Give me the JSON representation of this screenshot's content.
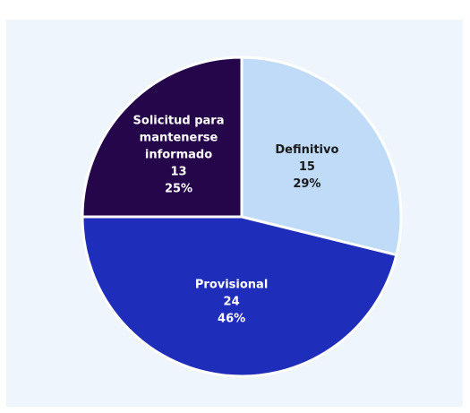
{
  "chart_data": {
    "type": "pie",
    "slices": [
      {
        "label": "Definitivo",
        "value": 15,
        "percent": "29%",
        "color": "#bfdbf8",
        "text_color": "#1a1a1a"
      },
      {
        "label": "Provisional",
        "value": 24,
        "percent": "46%",
        "color": "#1f2dbb",
        "text_color": "#ffffff"
      },
      {
        "label": "Solicitud para mantenerse informado",
        "value": 13,
        "percent": "25%",
        "color": "#26064b",
        "text_color": "#ffffff"
      }
    ],
    "label_lines": [
      [
        "Definitivo"
      ],
      [
        "Provisional"
      ],
      [
        "Solicitud para",
        "mantenerse",
        "informado"
      ]
    ],
    "start_angle": "12 o'clock, clockwise",
    "legend": "none"
  }
}
